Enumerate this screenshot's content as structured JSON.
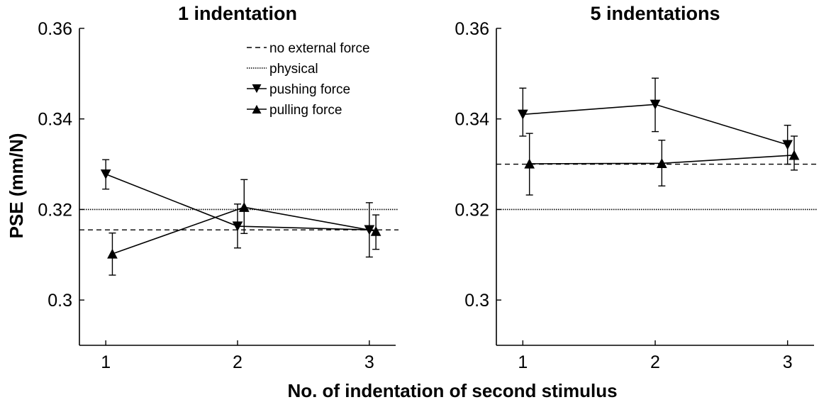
{
  "figure": {
    "ylabel": "PSE (mm/N)",
    "xlabel": "No. of indentation of second stimulus"
  },
  "legend": {
    "placement": "top-right of left panel",
    "entries": [
      {
        "key": "no_external",
        "label": "no external force",
        "line": "dashed",
        "marker": "none"
      },
      {
        "key": "physical",
        "label": "physical",
        "line": "dotted",
        "marker": "none"
      },
      {
        "key": "pushing",
        "label": "pushing force",
        "line": "solid",
        "marker": "triangle-down"
      },
      {
        "key": "pulling",
        "label": "pulling force",
        "line": "solid",
        "marker": "triangle-up"
      }
    ]
  },
  "chart_data": [
    {
      "type": "line",
      "title": "1 indentation",
      "xlabel": "No. of indentation of second stimulus",
      "ylabel": "PSE (mm/N)",
      "xlim": [
        0.8,
        3.2
      ],
      "ylim": [
        0.29,
        0.36
      ],
      "xticks": [
        1,
        2,
        3
      ],
      "yticks": [
        0.3,
        0.32,
        0.34,
        0.36
      ],
      "ytick_labels": [
        "0.3",
        "0.32",
        "0.34",
        "0.36"
      ],
      "reference_lines": [
        {
          "key": "no_external",
          "name": "no external force",
          "y": 0.3155,
          "style": "dashed"
        },
        {
          "key": "physical",
          "name": "physical",
          "y": 0.32,
          "style": "dotted"
        }
      ],
      "series": [
        {
          "key": "pushing",
          "name": "pushing force",
          "marker": "triangle-down",
          "x": [
            1,
            2,
            3
          ],
          "y": [
            0.3278,
            0.3163,
            0.3155
          ],
          "err_low": [
            0.3245,
            0.3115,
            0.3095
          ],
          "err_high": [
            0.331,
            0.3212,
            0.3215
          ]
        },
        {
          "key": "pulling",
          "name": "pulling force",
          "marker": "triangle-up",
          "x": [
            1.05,
            2.05,
            3.05
          ],
          "y": [
            0.3102,
            0.3205,
            0.3152
          ],
          "err_low": [
            0.3055,
            0.3147,
            0.3112
          ],
          "err_high": [
            0.3148,
            0.3266,
            0.3188
          ]
        }
      ]
    },
    {
      "type": "line",
      "title": "5 indentations",
      "xlabel": "No. of indentation of second stimulus",
      "ylabel": "",
      "xlim": [
        0.8,
        3.2
      ],
      "ylim": [
        0.29,
        0.36
      ],
      "xticks": [
        1,
        2,
        3
      ],
      "yticks": [
        0.3,
        0.32,
        0.34,
        0.36
      ],
      "ytick_labels": [
        "0.3",
        "0.32",
        "0.34",
        "0.36"
      ],
      "reference_lines": [
        {
          "key": "no_external",
          "name": "no external force",
          "y": 0.33,
          "style": "dashed"
        },
        {
          "key": "physical",
          "name": "physical",
          "y": 0.32,
          "style": "dotted"
        }
      ],
      "series": [
        {
          "key": "pushing",
          "name": "pushing force",
          "marker": "triangle-down",
          "x": [
            1,
            2,
            3
          ],
          "y": [
            0.341,
            0.3432,
            0.3343
          ],
          "err_low": [
            0.3362,
            0.3372,
            0.33
          ],
          "err_high": [
            0.3468,
            0.349,
            0.3386
          ]
        },
        {
          "key": "pulling",
          "name": "pulling force",
          "marker": "triangle-up",
          "x": [
            1.05,
            2.05,
            3.05
          ],
          "y": [
            0.3301,
            0.3302,
            0.332
          ],
          "err_low": [
            0.3232,
            0.3252,
            0.3287
          ],
          "err_high": [
            0.3368,
            0.3353,
            0.3362
          ]
        }
      ]
    }
  ]
}
